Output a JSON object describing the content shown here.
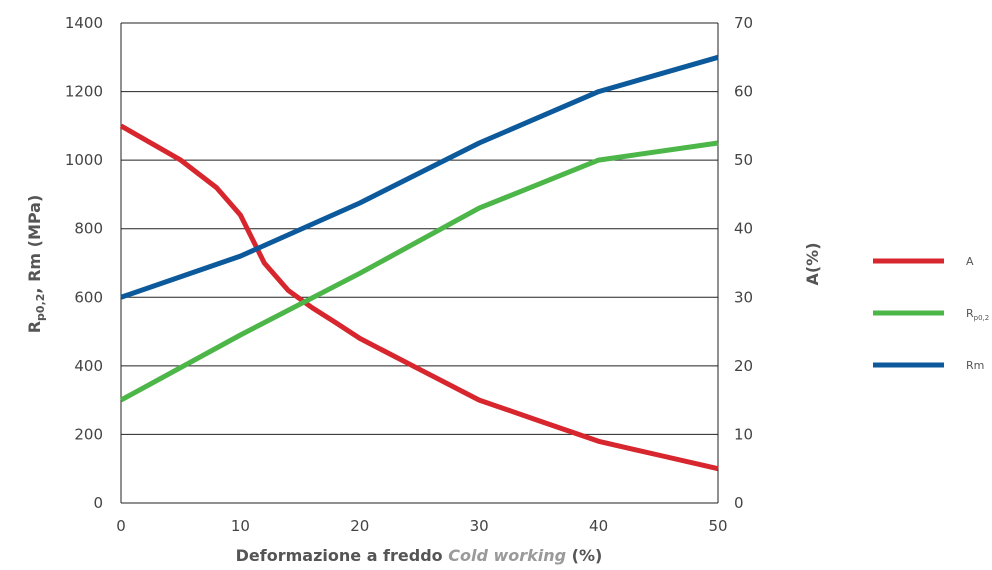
{
  "chart_data": {
    "type": "line",
    "xlabel": {
      "prefix": "Deformazione a freddo ",
      "italic": "Cold working",
      "suffix": " (%)"
    },
    "ylabel_left": {
      "part1": "R",
      "sub": "p0,2",
      "part2": ", Rm (MPa)"
    },
    "ylabel_right": "A(%)",
    "x_ticks": [
      0,
      10,
      20,
      30,
      40,
      50
    ],
    "xlim": [
      0,
      50
    ],
    "y_left_ticks": [
      0,
      200,
      400,
      600,
      800,
      1000,
      1200,
      1400
    ],
    "ylim_left": [
      0,
      1400
    ],
    "y_right_ticks": [
      0,
      10,
      20,
      30,
      40,
      50,
      60,
      70
    ],
    "ylim_right": [
      0,
      70
    ],
    "grid": "horizontal",
    "legend_position": "right",
    "series": [
      {
        "name": "A",
        "axis": "right",
        "color": "#d7262d",
        "points": [
          [
            0,
            55
          ],
          [
            5,
            50
          ],
          [
            8,
            46
          ],
          [
            10,
            42
          ],
          [
            12,
            35
          ],
          [
            14,
            31
          ],
          [
            16,
            28.5
          ],
          [
            18,
            26.3
          ],
          [
            20,
            24
          ],
          [
            25,
            19.5
          ],
          [
            30,
            15
          ],
          [
            35,
            12
          ],
          [
            40,
            9
          ],
          [
            45,
            7
          ],
          [
            50,
            5
          ]
        ]
      },
      {
        "name": "R",
        "name_sub": "p0,2",
        "axis": "left",
        "color": "#4cb648",
        "points": [
          [
            0,
            300
          ],
          [
            10,
            490
          ],
          [
            20,
            670
          ],
          [
            30,
            860
          ],
          [
            40,
            1000
          ],
          [
            50,
            1050
          ]
        ]
      },
      {
        "name": "Rm",
        "axis": "left",
        "color": "#0c5a9b",
        "points": [
          [
            0,
            600
          ],
          [
            10,
            720
          ],
          [
            20,
            875
          ],
          [
            30,
            1050
          ],
          [
            40,
            1200
          ],
          [
            50,
            1300
          ]
        ]
      }
    ]
  }
}
